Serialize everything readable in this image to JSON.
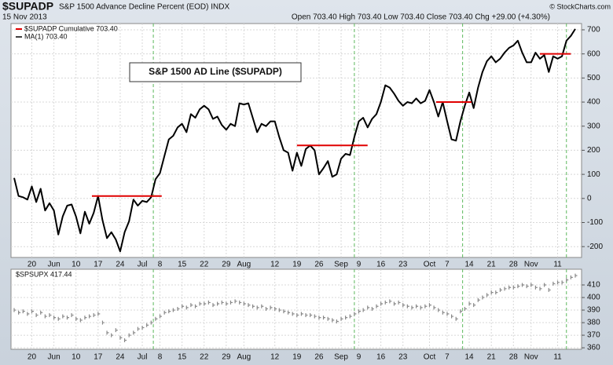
{
  "chart_data": [
    {
      "type": "line",
      "title": "$SUPADP",
      "subtitle": "S&P 1500 Advance Decline Percent (EOD) INDX",
      "date": "15 Nov 2013",
      "quote": "Open 703.40 High 703.40 Low 703.40 Close 703.40 Chg +29.00 (+4.30%)",
      "credit": "© StockCharts.com",
      "annotation": "S&P 1500 AD Line ($SUPADP)",
      "ma_label": "MA(1) 703.40",
      "categories": [
        null,
        null,
        null,
        null,
        "20",
        null,
        null,
        null,
        null,
        "Jun",
        null,
        null,
        null,
        null,
        "10",
        null,
        null,
        null,
        null,
        "17",
        null,
        null,
        null,
        null,
        "24",
        null,
        null,
        null,
        null,
        "Jul",
        null,
        null,
        null,
        "8",
        null,
        null,
        null,
        null,
        "15",
        null,
        null,
        null,
        null,
        "22",
        null,
        null,
        null,
        null,
        "29",
        null,
        null,
        null,
        "Aug",
        null,
        null,
        null,
        null,
        null,
        null,
        "12",
        null,
        null,
        null,
        null,
        "19",
        null,
        null,
        null,
        null,
        "26",
        null,
        null,
        null,
        null,
        "Sep",
        null,
        null,
        null,
        "9",
        null,
        null,
        null,
        null,
        "16",
        null,
        null,
        null,
        null,
        "23",
        null,
        null,
        null,
        null,
        null,
        "Oct",
        null,
        null,
        null,
        "7",
        null,
        null,
        null,
        null,
        "14",
        null,
        null,
        null,
        null,
        "21",
        null,
        null,
        null,
        null,
        "28",
        null,
        null,
        null,
        "Nov",
        null,
        null,
        null,
        null,
        null,
        "11",
        null,
        null,
        null,
        null
      ],
      "series": [
        {
          "name": "$SUPADP  Cumulative 703.40",
          "color": "#000000",
          "values": [
            85,
            10,
            5,
            -5,
            50,
            -15,
            40,
            -50,
            -20,
            -50,
            -150,
            -75,
            -30,
            -25,
            -75,
            -145,
            -55,
            -105,
            -60,
            10,
            -90,
            -165,
            -140,
            -170,
            -220,
            -140,
            -95,
            -5,
            -30,
            -10,
            -15,
            5,
            80,
            105,
            175,
            245,
            260,
            295,
            310,
            275,
            350,
            335,
            370,
            385,
            370,
            330,
            340,
            305,
            285,
            310,
            300,
            395,
            390,
            395,
            335,
            275,
            310,
            300,
            320,
            320,
            255,
            200,
            190,
            115,
            190,
            135,
            205,
            220,
            200,
            100,
            125,
            155,
            90,
            100,
            165,
            185,
            180,
            255,
            320,
            335,
            295,
            330,
            350,
            400,
            470,
            460,
            435,
            405,
            385,
            400,
            395,
            415,
            395,
            405,
            450,
            400,
            340,
            400,
            320,
            245,
            240,
            320,
            385,
            440,
            375,
            460,
            525,
            570,
            590,
            565,
            580,
            605,
            625,
            635,
            655,
            605,
            565,
            565,
            605,
            580,
            595,
            525,
            590,
            580,
            590,
            655,
            675,
            703.4
          ]
        }
      ],
      "levels": [
        {
          "y": 10,
          "x": [
            17.6,
            33.4
          ],
          "color": "#e00000"
        },
        {
          "y": 220,
          "x": [
            64,
            80
          ],
          "color": "#e00000"
        },
        {
          "y": 400,
          "x": [
            95.5,
            103.5
          ],
          "color": "#e00000"
        },
        {
          "y": 600,
          "x": [
            119,
            126
          ],
          "color": "#e00000"
        }
      ],
      "markers": [
        31.5,
        77,
        101.5,
        125
      ],
      "marker_color": "#5cb85c",
      "ylim": [
        -245,
        726
      ],
      "yticks": [
        700,
        600,
        500,
        400,
        300,
        200,
        100,
        0,
        -100,
        -200
      ],
      "grid": true
    },
    {
      "type": "price",
      "label": "$SPSUPX 417.44",
      "color": "#888888",
      "values": [
        390,
        388,
        389,
        387,
        389,
        386,
        388,
        385,
        386,
        384,
        383,
        385,
        384,
        386,
        383,
        382,
        384,
        385,
        386,
        387,
        380,
        372,
        370,
        374,
        368,
        366,
        370,
        372,
        375,
        376,
        378,
        380,
        383,
        385,
        388,
        389,
        390,
        391,
        393,
        392,
        394,
        393,
        395,
        395,
        396,
        394,
        395,
        396,
        395,
        396,
        397,
        396,
        395,
        394,
        393,
        392,
        393,
        391,
        392,
        391,
        390,
        389,
        388,
        387,
        386,
        387,
        386,
        386,
        385,
        384,
        384,
        383,
        382,
        381,
        383,
        384,
        385,
        387,
        389,
        390,
        392,
        391,
        393,
        395,
        396,
        397,
        395,
        396,
        394,
        393,
        392,
        393,
        392,
        393,
        394,
        392,
        390,
        388,
        387,
        385,
        383,
        389,
        391,
        395,
        394,
        398,
        400,
        402,
        404,
        404,
        406,
        407,
        408,
        408,
        409,
        410,
        409,
        410,
        408,
        407,
        410,
        406,
        411,
        412,
        412,
        414,
        416,
        417.44
      ],
      "ylim": [
        358.8,
        422.5
      ],
      "yticks": [
        410,
        400,
        390,
        380,
        370,
        360
      ],
      "grid": true
    }
  ]
}
